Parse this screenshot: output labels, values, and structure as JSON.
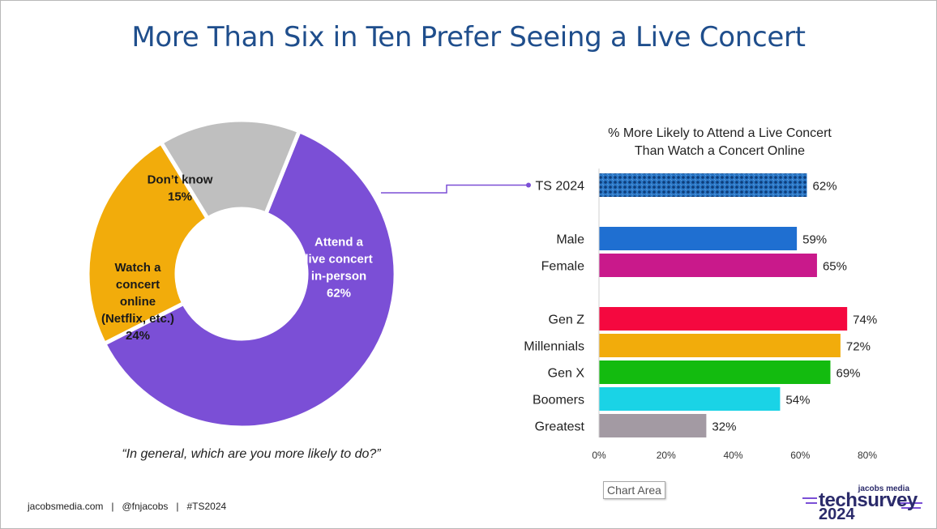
{
  "title": "More Than Six in Ten Prefer Seeing a Live Concert",
  "question": "“In general, which are you more likely to do?”",
  "footer": "jacobsmedia.com   |   @fnjacobs   |   #TS2024",
  "chart_area_label": "Chart Area",
  "logo": {
    "top": "jacobs media",
    "main": "techsurvey",
    "year": "2024"
  },
  "colors": {
    "title": "#1f4e8c",
    "attend": "#7b4fd6",
    "watch": "#f2ac0b",
    "dontknow": "#bfbfbf",
    "ts2024": "#2c79c8",
    "male": "#1f6fd1",
    "female": "#c9198b",
    "genz": "#f5083f",
    "millennials": "#f2ac0b",
    "genx": "#13bb0f",
    "boomers": "#1ad3e6",
    "greatest": "#a39aa3"
  },
  "chart_data": [
    {
      "type": "pie",
      "variant": "donut",
      "slices": [
        {
          "label_lines": [
            "Attend a",
            "live concert",
            "in-person",
            "62%"
          ],
          "value": 62,
          "color": "#7b4fd6",
          "text_color": "#ffffff"
        },
        {
          "label_lines": [
            "Watch a",
            "concert",
            "online",
            "(Netflix, etc.)",
            "24%"
          ],
          "value": 24,
          "color": "#f2ac0b",
          "text_color": "#1a1a1a"
        },
        {
          "label_lines": [
            "Don’t know",
            "15%"
          ],
          "value": 15,
          "color": "#bfbfbf",
          "text_color": "#1a1a1a"
        }
      ]
    },
    {
      "type": "bar",
      "orientation": "horizontal",
      "title_lines": [
        "% More Likely to Attend a Live Concert",
        "Than Watch a Concert Online"
      ],
      "xlim": [
        0,
        80
      ],
      "xticks": [
        "0%",
        "20%",
        "40%",
        "60%",
        "80%"
      ],
      "grid": false,
      "bars": [
        {
          "category": "TS 2024",
          "value": 62,
          "label": "62%",
          "color": "#2c79c8",
          "pattern": "dots",
          "group": 0
        },
        {
          "category": "Male",
          "value": 59,
          "label": "59%",
          "color": "#1f6fd1",
          "group": 1
        },
        {
          "category": "Female",
          "value": 65,
          "label": "65%",
          "color": "#c9198b",
          "group": 1
        },
        {
          "category": "Gen Z",
          "value": 74,
          "label": "74%",
          "color": "#f5083f",
          "group": 2
        },
        {
          "category": "Millennials",
          "value": 72,
          "label": "72%",
          "color": "#f2ac0b",
          "group": 2
        },
        {
          "category": "Gen X",
          "value": 69,
          "label": "69%",
          "color": "#13bb0f",
          "group": 2
        },
        {
          "category": "Boomers",
          "value": 54,
          "label": "54%",
          "color": "#1ad3e6",
          "group": 2
        },
        {
          "category": "Greatest",
          "value": 32,
          "label": "32%",
          "color": "#a39aa3",
          "group": 2
        }
      ]
    }
  ]
}
